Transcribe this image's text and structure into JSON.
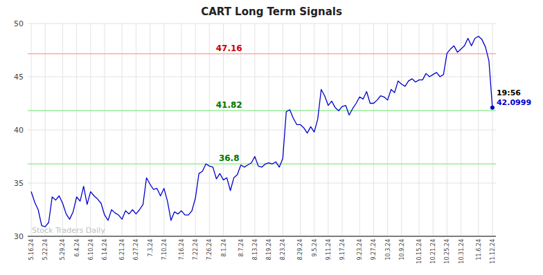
{
  "chart_data": {
    "type": "line",
    "title": "CART Long Term Signals",
    "categories": [
      "5.16.24",
      null,
      null,
      null,
      "5.22.24",
      null,
      null,
      null,
      null,
      "5.29.24",
      null,
      null,
      null,
      "6.4.24",
      null,
      null,
      null,
      "6.10.24",
      null,
      null,
      null,
      "6.14.24",
      null,
      null,
      null,
      null,
      "6.21.24",
      null,
      null,
      null,
      "6.27.24",
      null,
      null,
      null,
      "7.3.24",
      null,
      null,
      null,
      "7.10.24",
      null,
      null,
      null,
      null,
      "7.16.24",
      null,
      null,
      null,
      "7.22.24",
      null,
      null,
      null,
      "7.26.24",
      null,
      null,
      null,
      "8.1.24",
      null,
      null,
      null,
      null,
      "8.7.24",
      null,
      null,
      null,
      "8.13.24",
      null,
      null,
      null,
      "8.19.24",
      null,
      null,
      null,
      "8.23.24",
      null,
      null,
      null,
      null,
      "8.29.24",
      null,
      null,
      null,
      "9.5.24",
      null,
      null,
      null,
      "9.11.24",
      null,
      null,
      null,
      "9.17.24",
      null,
      null,
      null,
      null,
      "9.23.24",
      null,
      null,
      null,
      "9.27.24",
      null,
      null,
      null,
      "10.3.24",
      null,
      null,
      null,
      "10.9.24",
      null,
      null,
      null,
      null,
      "10.15.24",
      null,
      null,
      null,
      "10.21.24",
      null,
      null,
      null,
      "10.25.24",
      null,
      null,
      null,
      "10.31.24",
      null,
      null,
      null,
      null,
      "11.6.24",
      null,
      null,
      null,
      "11.12.24"
    ],
    "values": [
      34.2,
      33.2,
      32.5,
      31.0,
      30.9,
      31.3,
      33.7,
      33.4,
      33.8,
      33.1,
      32.1,
      31.6,
      32.3,
      33.7,
      33.3,
      34.7,
      33.0,
      34.2,
      33.8,
      33.5,
      33.1,
      32.0,
      31.5,
      32.5,
      32.2,
      32.0,
      31.6,
      32.4,
      32.1,
      32.5,
      32.1,
      32.5,
      33.0,
      35.5,
      34.9,
      34.4,
      34.5,
      33.8,
      34.5,
      33.3,
      31.5,
      32.3,
      32.1,
      32.4,
      32.0,
      32.0,
      32.4,
      33.6,
      35.9,
      36.1,
      36.8,
      36.6,
      36.5,
      35.4,
      35.9,
      35.3,
      35.5,
      34.3,
      35.5,
      35.8,
      36.7,
      36.5,
      36.7,
      36.9,
      37.5,
      36.6,
      36.5,
      36.8,
      36.9,
      36.8,
      37.0,
      36.5,
      37.3,
      41.7,
      41.9,
      41.1,
      40.5,
      40.5,
      40.2,
      39.7,
      40.3,
      39.8,
      41.0,
      43.8,
      43.2,
      42.3,
      42.7,
      42.1,
      41.8,
      42.2,
      42.3,
      41.4,
      42.0,
      42.5,
      43.1,
      42.9,
      43.6,
      42.5,
      42.5,
      42.8,
      43.2,
      43.1,
      42.8,
      43.8,
      43.5,
      44.6,
      44.3,
      44.1,
      44.6,
      44.8,
      44.5,
      44.7,
      44.7,
      45.3,
      45.0,
      45.2,
      45.4,
      45.0,
      45.2,
      47.2,
      47.6,
      47.9,
      47.3,
      47.6,
      47.9,
      48.6,
      47.9,
      48.6,
      48.8,
      48.5,
      47.8,
      46.5,
      42.1
    ],
    "color": "#0000cc",
    "ylim": [
      30,
      50
    ],
    "yticks": [
      30,
      35,
      40,
      45,
      50
    ],
    "grid": true,
    "reference_lines": [
      {
        "value": 47.16,
        "label": "47.16",
        "color": "#ffaaaa",
        "label_color": "#cc0000"
      },
      {
        "value": 41.82,
        "label": "41.82",
        "color": "#99ee99",
        "label_color": "#007700"
      },
      {
        "value": 36.8,
        "label": "36.8",
        "color": "#99ee99",
        "label_color": "#007700"
      }
    ],
    "last_point_labels": [
      {
        "text": "19:56",
        "color": "#000000"
      },
      {
        "text": "42.0999",
        "color": "#0000cc"
      }
    ],
    "watermark": {
      "text": "Stock Traders Daily",
      "color": "#c0c0c0"
    }
  }
}
